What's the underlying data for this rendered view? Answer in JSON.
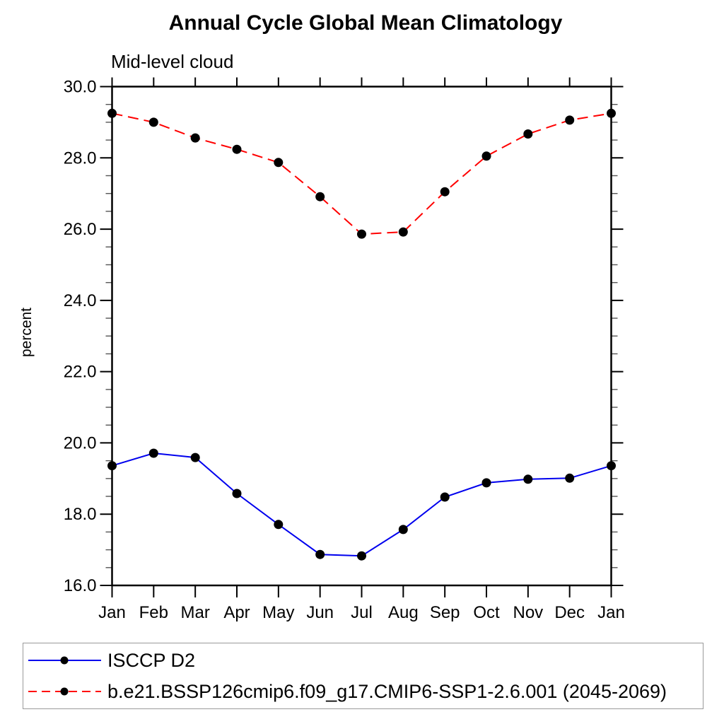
{
  "title": "Annual Cycle Global Mean Climatology",
  "subtitle": "Mid-level cloud",
  "chart_data": {
    "type": "line",
    "title": "Annual Cycle Global Mean Climatology",
    "subtitle": "Mid-level cloud",
    "xlabel": "",
    "ylabel": "percent",
    "x_categories": [
      "Jan",
      "Feb",
      "Mar",
      "Apr",
      "May",
      "Jun",
      "Jul",
      "Aug",
      "Sep",
      "Oct",
      "Nov",
      "Dec",
      "Jan"
    ],
    "ylim": [
      16.0,
      30.0
    ],
    "ytick_major": [
      16,
      18,
      20,
      22,
      24,
      26,
      28,
      30
    ],
    "ytick_labels": [
      "16.0",
      "18.0",
      "20.0",
      "22.0",
      "24.0",
      "26.0",
      "28.0",
      "30.0"
    ],
    "ytick_minor_step": 0.5,
    "grid": false,
    "legend_position": "bottom",
    "series": [
      {
        "name": "ISCCP D2",
        "color": "#0000ee",
        "style": "solid",
        "marker": "black-dot",
        "marker_color": "#000000",
        "values": [
          19.36,
          19.71,
          19.59,
          18.58,
          17.71,
          16.87,
          16.83,
          17.57,
          18.48,
          18.88,
          18.98,
          19.01,
          19.36
        ]
      },
      {
        "name": "b.e21.BSSP126cmip6.f09_g17.CMIP6-SSP1-2.6.001 (2045-2069)",
        "color": "#ff0000",
        "style": "dashed",
        "marker": "black-dot",
        "marker_color": "#000000",
        "values": [
          29.25,
          29.0,
          28.56,
          28.24,
          27.87,
          26.91,
          25.86,
          25.92,
          27.05,
          28.05,
          28.67,
          29.06,
          29.25
        ]
      }
    ]
  }
}
